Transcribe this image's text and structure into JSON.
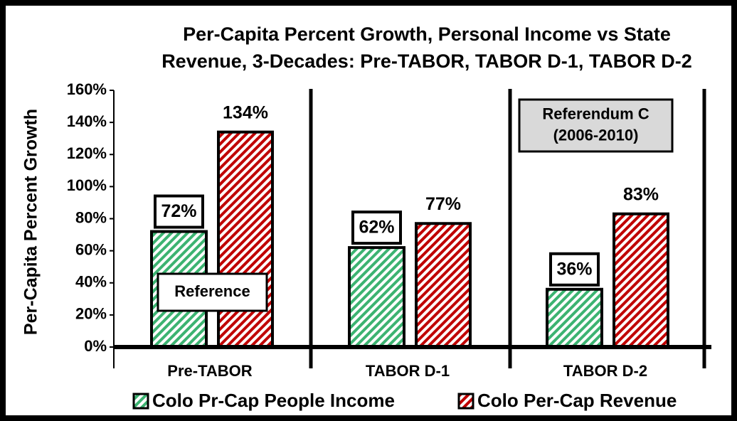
{
  "chart_data": {
    "type": "bar",
    "title": [
      "Per-Capita Percent Growth, Personal Income vs State",
      "Revenue,  3-Decades: Pre-TABOR, TABOR D-1, TABOR D-2"
    ],
    "y_label": "Per-Capita Percent Growth",
    "categories": [
      "Pre-TABOR",
      "TABOR D-1",
      "TABOR D-2"
    ],
    "series": [
      {
        "name": "Colo Pr-Cap People Income",
        "color": "#3cb371",
        "values": [
          72,
          62,
          36
        ],
        "value_labels": [
          "72%",
          "62%",
          "36%"
        ]
      },
      {
        "name": "Colo Per-Cap Revenue",
        "color": "#c00000",
        "values": [
          134,
          77,
          83
        ],
        "value_labels": [
          "134%",
          "77%",
          "83%"
        ]
      }
    ],
    "ylim": [
      0,
      160
    ],
    "yticks": [
      {
        "value": 0,
        "label": "0%"
      },
      {
        "value": 20,
        "label": "20%"
      },
      {
        "value": 40,
        "label": "40%"
      },
      {
        "value": 60,
        "label": "60%"
      },
      {
        "value": 80,
        "label": "80%"
      },
      {
        "value": 100,
        "label": "100%"
      },
      {
        "value": 120,
        "label": "120%"
      },
      {
        "value": 140,
        "label": "140%"
      },
      {
        "value": 160,
        "label": "160%"
      }
    ],
    "annotations": [
      [
        "Reference"
      ],
      [
        "Referendum C",
        "(2006-2010)"
      ]
    ],
    "legend": "bottom",
    "grid": false
  }
}
